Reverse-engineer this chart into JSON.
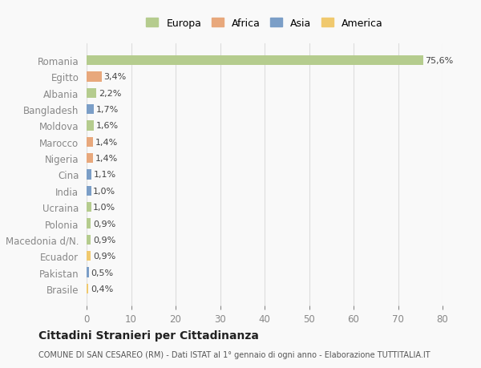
{
  "categories": [
    "Romania",
    "Egitto",
    "Albania",
    "Bangladesh",
    "Moldova",
    "Marocco",
    "Nigeria",
    "Cina",
    "India",
    "Ucraina",
    "Polonia",
    "Macedonia d/N.",
    "Ecuador",
    "Pakistan",
    "Brasile"
  ],
  "values": [
    75.6,
    3.4,
    2.2,
    1.7,
    1.6,
    1.4,
    1.4,
    1.1,
    1.0,
    1.0,
    0.9,
    0.9,
    0.9,
    0.5,
    0.4
  ],
  "labels": [
    "75,6%",
    "3,4%",
    "2,2%",
    "1,7%",
    "1,6%",
    "1,4%",
    "1,4%",
    "1,1%",
    "1,0%",
    "1,0%",
    "0,9%",
    "0,9%",
    "0,9%",
    "0,5%",
    "0,4%"
  ],
  "colors": [
    "#b5cc8e",
    "#e8a87c",
    "#b5cc8e",
    "#7b9ec7",
    "#b5cc8e",
    "#e8a87c",
    "#e8a87c",
    "#7b9ec7",
    "#7b9ec7",
    "#b5cc8e",
    "#b5cc8e",
    "#b5cc8e",
    "#f0c96e",
    "#7b9ec7",
    "#f0c96e"
  ],
  "legend_labels": [
    "Europa",
    "Africa",
    "Asia",
    "America"
  ],
  "legend_colors": [
    "#b5cc8e",
    "#e8a87c",
    "#7b9ec7",
    "#f0c96e"
  ],
  "xlim": [
    0,
    80
  ],
  "xticks": [
    0,
    10,
    20,
    30,
    40,
    50,
    60,
    70,
    80
  ],
  "title": "Cittadini Stranieri per Cittadinanza",
  "subtitle": "COMUNE DI SAN CESAREO (RM) - Dati ISTAT al 1° gennaio di ogni anno - Elaborazione TUTTITALIA.IT",
  "bg_color": "#f9f9f9",
  "grid_color": "#dddddd",
  "bar_height": 0.6
}
